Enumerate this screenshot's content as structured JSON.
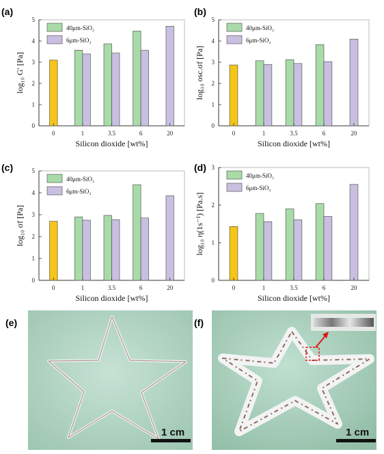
{
  "panels": [
    "(a)",
    "(b)",
    "(c)",
    "(d)",
    "(e)",
    "(f)"
  ],
  "scale_bar_label": "1 cm",
  "colors": {
    "control": "#f5c518",
    "sio2_40um": "#a8dba8",
    "sio2_6um": "#c9bfe0",
    "outline": "#444444",
    "photo_background": "#b7d6c6"
  },
  "chart_data": [
    {
      "type": "bar",
      "panel": "(a)",
      "categories": [
        "0",
        "1",
        "3.5",
        "6",
        "20"
      ],
      "xlabel": "Silicon dioxide [wt%]",
      "ylabel": "log₁₀ G' [Pa]",
      "ylim": [
        0,
        5
      ],
      "yticks": [
        "0",
        "1",
        "2",
        "3",
        "4",
        "5"
      ],
      "legend": "top-left",
      "series": [
        {
          "name": "",
          "values": [
            3.1,
            null,
            null,
            null,
            null
          ]
        },
        {
          "name": "40μm-SiO₂",
          "values": [
            null,
            3.57,
            3.87,
            4.47,
            null
          ]
        },
        {
          "name": "6μm-SiO₂",
          "values": [
            null,
            3.39,
            3.43,
            3.56,
            4.7
          ]
        }
      ]
    },
    {
      "type": "bar",
      "panel": "(b)",
      "categories": [
        "0",
        "1",
        "3.5",
        "6",
        "20"
      ],
      "xlabel": "Silicon dioxide [wt%]",
      "ylabel": "log₁₀ osc.σf [Pa]",
      "ylim": [
        0,
        5
      ],
      "yticks": [
        "0",
        "1",
        "2",
        "3",
        "4",
        "5"
      ],
      "legend": "top-left",
      "series": [
        {
          "name": "",
          "values": [
            2.87,
            null,
            null,
            null,
            null
          ]
        },
        {
          "name": "40μm-SiO₂",
          "values": [
            null,
            3.07,
            3.12,
            3.83,
            null
          ]
        },
        {
          "name": "6μm-SiO₂",
          "values": [
            null,
            2.89,
            2.94,
            3.03,
            4.09
          ]
        }
      ]
    },
    {
      "type": "bar",
      "panel": "(c)",
      "categories": [
        "0",
        "1",
        "3.5",
        "6",
        "20"
      ],
      "xlabel": "Silicon dioxide [wt%]",
      "ylabel": "log₁₀ σf [Pa]",
      "ylim": [
        0,
        5
      ],
      "yticks": [
        "0",
        "1",
        "2",
        "3",
        "4",
        "5"
      ],
      "legend": "top-left",
      "series": [
        {
          "name": "",
          "values": [
            2.7,
            null,
            null,
            null,
            null
          ]
        },
        {
          "name": "40μm-SiO₂",
          "values": [
            null,
            2.9,
            2.97,
            4.37,
            null
          ]
        },
        {
          "name": "6μm-SiO₂",
          "values": [
            null,
            2.75,
            2.77,
            2.85,
            3.87
          ]
        }
      ]
    },
    {
      "type": "bar",
      "panel": "(d)",
      "categories": [
        "0",
        "1",
        "3.5",
        "6",
        "20"
      ],
      "xlabel": "Silicon dioxide [wt%]",
      "ylabel": "log₁₀ η(1s⁻¹) [Pa.s]",
      "ylim": [
        0,
        3
      ],
      "yticks": [
        "0",
        "1",
        "2",
        "3"
      ],
      "legend": "top-left",
      "series": [
        {
          "name": "",
          "values": [
            1.43,
            null,
            null,
            null,
            null
          ]
        },
        {
          "name": "40μm-SiO₂",
          "values": [
            null,
            1.78,
            1.9,
            2.04,
            null
          ]
        },
        {
          "name": "6μm-SiO₂",
          "values": [
            null,
            1.56,
            1.61,
            1.7,
            2.55
          ]
        }
      ]
    }
  ]
}
